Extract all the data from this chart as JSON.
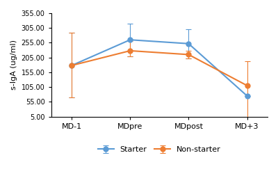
{
  "x_labels": [
    "MD-1",
    "MDpre",
    "MDpost",
    "MD+3"
  ],
  "starter_values": [
    178,
    265,
    252,
    75
  ],
  "nonstarter_values": [
    178,
    228,
    215,
    110
  ],
  "starter_yerr_lower": [
    108,
    55,
    50,
    0
  ],
  "starter_yerr_upper": [
    112,
    55,
    50,
    0
  ],
  "nonstarter_yerr_lower": [
    108,
    18,
    12,
    110
  ],
  "nonstarter_yerr_upper": [
    112,
    32,
    12,
    82
  ],
  "yticks": [
    5.0,
    55.0,
    105.0,
    155.0,
    205.0,
    255.0,
    305.0,
    355.0
  ],
  "ylim": [
    5.0,
    355.0
  ],
  "ylabel": "s-IgA (ug/ml)",
  "starter_color": "#5B9BD5",
  "nonstarter_color": "#ED7D31",
  "starter_label": "Starter",
  "nonstarter_label": "Non-starter",
  "background_color": "#FFFFFF",
  "marker": "o",
  "markersize": 5,
  "linewidth": 1.5
}
